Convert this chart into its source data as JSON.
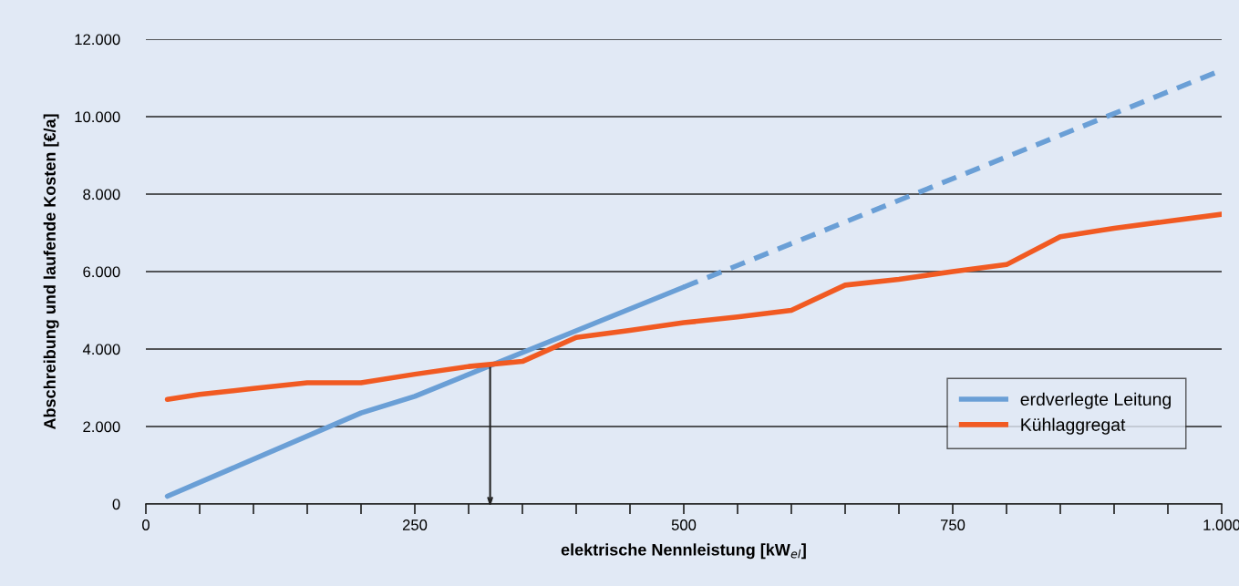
{
  "chart_data": {
    "type": "line",
    "xlabel": "elektrische Nennleistung [kW$_{el}$]",
    "ylabel": "Abschreibung und laufende Kosten [€/a]",
    "xlim": [
      0,
      1000
    ],
    "ylim": [
      0,
      12000
    ],
    "xticks": [
      0,
      {
        "value": 50,
        "label": null
      },
      {
        "value": 100,
        "label": null
      },
      {
        "value": 150,
        "label": null
      },
      {
        "value": 200,
        "label": null
      },
      250,
      {
        "value": 300,
        "label": null
      },
      {
        "value": 350,
        "label": null
      },
      {
        "value": 400,
        "label": null
      },
      {
        "value": 450,
        "label": null
      },
      500,
      {
        "value": 550,
        "label": null
      },
      {
        "value": 600,
        "label": null
      },
      {
        "value": 650,
        "label": null
      },
      {
        "value": 700,
        "label": null
      },
      750,
      {
        "value": 800,
        "label": null
      },
      {
        "value": 850,
        "label": null
      },
      {
        "value": 900,
        "label": null
      },
      {
        "value": 950,
        "label": null
      },
      {
        "value": 1000,
        "label": "1.000"
      }
    ],
    "yticks": [
      0,
      {
        "value": 2000,
        "label": "2.000"
      },
      {
        "value": 4000,
        "label": "4.000"
      },
      {
        "value": 6000,
        "label": "6.000"
      },
      {
        "value": 8000,
        "label": "8.000"
      },
      {
        "value": 10000,
        "label": "10.000"
      },
      {
        "value": 12000,
        "label": "12.000"
      }
    ],
    "grid": "y",
    "legend": "bottom right",
    "marker": "none",
    "series": [
      {
        "name": "erdverlegte Leitung",
        "color": "#6a9fd6",
        "line_style": "solid",
        "x": [
          20,
          200,
          250,
          500
        ],
        "values": [
          200,
          2350,
          2780,
          5600
        ]
      },
      {
        "color": "#6a9fd6",
        "line_style": "dashed",
        "x": [
          500,
          1000
        ],
        "values": [
          5600,
          11200
        ]
      },
      {
        "color": "#222222",
        "line_style": "solid",
        "x": [
          320,
          320
        ],
        "values": [
          3600,
          0
        ]
      },
      {
        "name": "Kühlaggregat",
        "color": "#f15a22",
        "line_style": "solid",
        "x": [
          20,
          50,
          100,
          150,
          200,
          250,
          300,
          350,
          400,
          450,
          500,
          550,
          600,
          650,
          700,
          750,
          800,
          850,
          900,
          950,
          1000
        ],
        "values": [
          2700,
          2830,
          2980,
          3130,
          3130,
          3350,
          3550,
          3680,
          4300,
          4480,
          4680,
          4830,
          5000,
          5650,
          5800,
          6000,
          6180,
          6900,
          7120,
          7300,
          7480
        ]
      }
    ]
  }
}
